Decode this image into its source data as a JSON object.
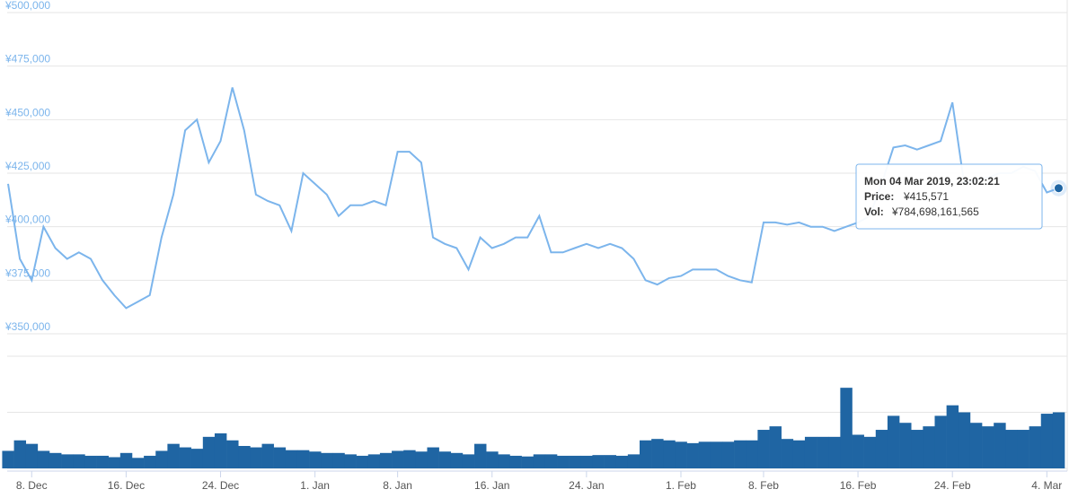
{
  "chart_data": [
    {
      "type": "line",
      "categories": [
        null,
        null,
        "8. Dec",
        null,
        null,
        null,
        null,
        null,
        null,
        null,
        "16. Dec",
        null,
        null,
        null,
        null,
        null,
        null,
        null,
        "24. Dec",
        null,
        null,
        null,
        null,
        null,
        null,
        null,
        "1. Jan",
        null,
        null,
        null,
        null,
        null,
        null,
        "8. Jan",
        null,
        null,
        null,
        null,
        null,
        null,
        null,
        "16. Jan",
        null,
        null,
        null,
        null,
        null,
        null,
        null,
        "24. Jan",
        null,
        null,
        null,
        null,
        null,
        null,
        null,
        "1. Feb",
        null,
        null,
        null,
        null,
        null,
        null,
        "8. Feb",
        null,
        null,
        null,
        null,
        null,
        null,
        null,
        "16. Feb",
        null,
        null,
        null,
        null,
        null,
        null,
        null,
        "24. Feb",
        null,
        null,
        null,
        null,
        null,
        null,
        null,
        "4. Mar",
        null
      ],
      "series": [
        {
          "name": "Price",
          "color": "#7cb5ec",
          "values": [
            420000,
            385000,
            375000,
            400000,
            390000,
            385000,
            388000,
            385000,
            375000,
            368000,
            362000,
            365000,
            368000,
            395000,
            415000,
            445000,
            450000,
            430000,
            440000,
            465000,
            445000,
            415000,
            412000,
            410000,
            398000,
            425000,
            420000,
            415000,
            405000,
            410000,
            410000,
            412000,
            410000,
            435000,
            435000,
            430000,
            395000,
            392000,
            390000,
            380000,
            395000,
            390000,
            392000,
            395000,
            395000,
            405000,
            388000,
            388000,
            390000,
            392000,
            390000,
            392000,
            390000,
            385000,
            375000,
            373000,
            376000,
            377000,
            380000,
            380000,
            380000,
            377000,
            375000,
            374000,
            402000,
            402000,
            401000,
            402000,
            400000,
            400000,
            398000,
            400000,
            402000,
            405000,
            420000,
            437000,
            438000,
            436000,
            438000,
            440000,
            458000,
            420000,
            422000,
            423000,
            425000,
            425000,
            428000,
            426000,
            416000,
            418000
          ]
        }
      ],
      "ylim": [
        350000,
        500000
      ],
      "yticks": [
        {
          "value": 350000,
          "label": "¥350,000"
        },
        {
          "value": 375000,
          "label": "¥375,000"
        },
        {
          "value": 400000,
          "label": "¥400,000"
        },
        {
          "value": 425000,
          "label": "¥425,000"
        },
        {
          "value": 450000,
          "label": "¥450,000"
        },
        {
          "value": 475000,
          "label": "¥475,000"
        },
        {
          "value": 500000,
          "label": "¥500,000"
        }
      ],
      "grid": true,
      "tooltip": {
        "title": "Mon 04 Mar 2019, 23:02:21",
        "price_label": "Price:",
        "price": "¥415,571",
        "vol_label": "Vol:",
        "vol": "¥784,698,161,565"
      }
    },
    {
      "type": "bar",
      "color": "#1f65a3",
      "values": [
        250000000000.0,
        400000000000.0,
        350000000000.0,
        250000000000.0,
        220000000000.0,
        200000000000.0,
        200000000000.0,
        180000000000.0,
        180000000000.0,
        160000000000.0,
        220000000000.0,
        150000000000.0,
        180000000000.0,
        250000000000.0,
        350000000000.0,
        300000000000.0,
        280000000000.0,
        450000000000.0,
        500000000000.0,
        400000000000.0,
        320000000000.0,
        300000000000.0,
        350000000000.0,
        300000000000.0,
        260000000000.0,
        260000000000.0,
        240000000000.0,
        220000000000.0,
        220000000000.0,
        200000000000.0,
        180000000000.0,
        200000000000.0,
        220000000000.0,
        250000000000.0,
        260000000000.0,
        240000000000.0,
        300000000000.0,
        240000000000.0,
        220000000000.0,
        200000000000.0,
        350000000000.0,
        240000000000.0,
        200000000000.0,
        180000000000.0,
        170000000000.0,
        200000000000.0,
        200000000000.0,
        180000000000.0,
        180000000000.0,
        180000000000.0,
        190000000000.0,
        190000000000.0,
        180000000000.0,
        200000000000.0,
        400000000000.0,
        420000000000.0,
        400000000000.0,
        380000000000.0,
        360000000000.0,
        380000000000.0,
        380000000000.0,
        380000000000.0,
        400000000000.0,
        400000000000.0,
        550000000000.0,
        600000000000.0,
        420000000000.0,
        400000000000.0,
        450000000000.0,
        450000000000.0,
        450000000000.0,
        1150000000000.0,
        480000000000.0,
        450000000000.0,
        550000000000.0,
        750000000000.0,
        650000000000.0,
        550000000000.0,
        600000000000.0,
        750000000000.0,
        900000000000.0,
        800000000000.0,
        650000000000.0,
        600000000000.0,
        650000000000.0,
        550000000000.0,
        550000000000.0,
        600000000000.0,
        780000000000.0,
        800000000000.0
      ],
      "ylim": [
        0,
        1600000000000.0
      ],
      "yticks": [
        0,
        800000000000.0,
        1600000000000.0
      ],
      "grid": true
    }
  ]
}
